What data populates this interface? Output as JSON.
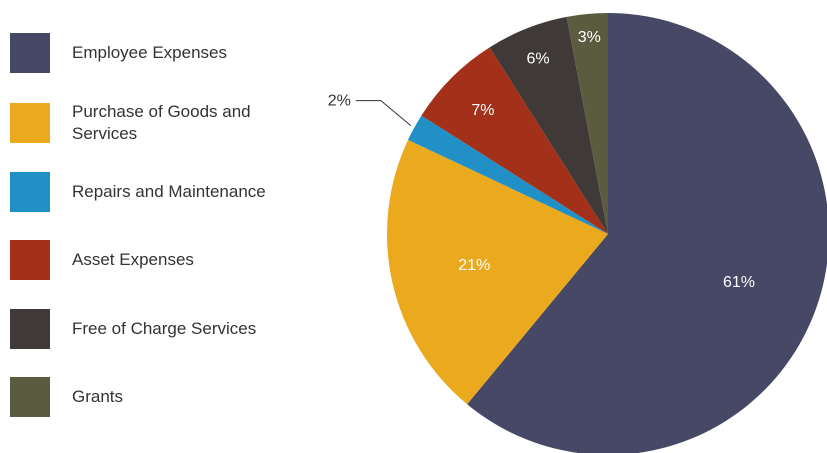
{
  "chart_data": {
    "type": "pie",
    "title": "",
    "legend_position": "left",
    "slices": [
      {
        "name": "Employee Expenses",
        "value": 61,
        "label": "61%",
        "color": "#474766",
        "label_color": "#ffffff"
      },
      {
        "name": "Purchase of Goods and Services",
        "value": 21,
        "label": "21%",
        "color": "#eba91e",
        "label_color": "#ffffff"
      },
      {
        "name": "Repairs and Maintenance",
        "value": 2,
        "label": "2%",
        "color": "#2090c6",
        "label_color": "#333333"
      },
      {
        "name": "Asset Expenses",
        "value": 7,
        "label": "7%",
        "color": "#a3311a",
        "label_color": "#ffffff"
      },
      {
        "name": "Free of Charge Services",
        "value": 6,
        "label": "6%",
        "color": "#3f3a38",
        "label_color": "#ffffff"
      },
      {
        "name": "Grants",
        "value": 3,
        "label": "3%",
        "color": "#5a5b3f",
        "label_color": "#ffffff"
      }
    ]
  }
}
